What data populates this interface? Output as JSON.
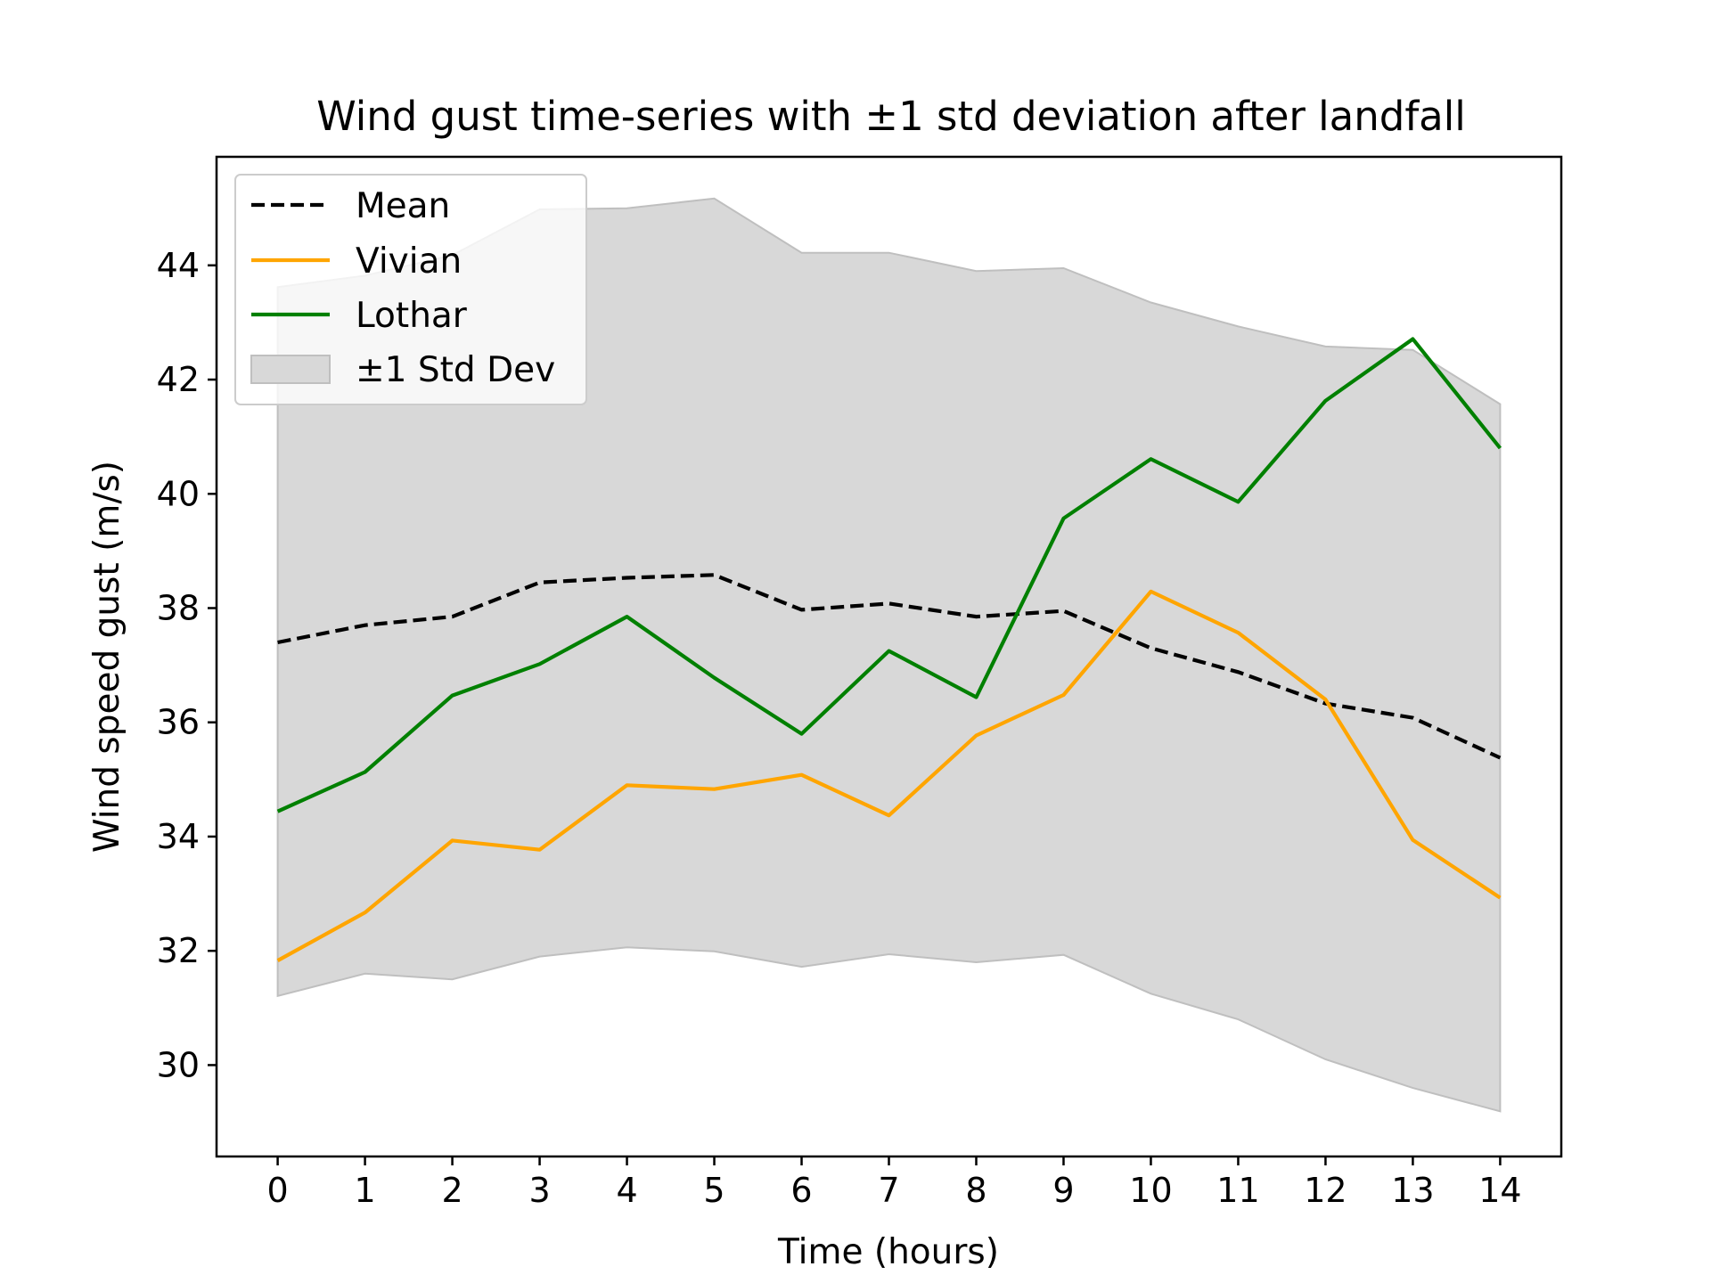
{
  "chart_data": {
    "type": "line",
    "title": "Wind gust time-series with ±1 std deviation after landfall",
    "xlabel": "Time (hours)",
    "ylabel": "Wind speed gust (m/s)",
    "x": [
      0,
      1,
      2,
      3,
      4,
      5,
      6,
      7,
      8,
      9,
      10,
      11,
      12,
      13,
      14
    ],
    "xlim": [
      -0.7,
      14.7
    ],
    "ylim": [
      28.4,
      45.9
    ],
    "xticks": [
      "0",
      "1",
      "2",
      "3",
      "4",
      "5",
      "6",
      "7",
      "8",
      "9",
      "10",
      "11",
      "12",
      "13",
      "14"
    ],
    "yticks": [
      "30",
      "32",
      "34",
      "36",
      "38",
      "40",
      "42",
      "44"
    ],
    "grid": false,
    "legend_position": "top-left",
    "series": [
      {
        "name": "Mean",
        "style": "dashed",
        "color": "#000000",
        "values": [
          37.4,
          37.7,
          37.85,
          38.45,
          38.53,
          38.58,
          37.97,
          38.08,
          37.85,
          37.95,
          37.3,
          36.88,
          36.33,
          36.08,
          35.38
        ]
      },
      {
        "name": "Vivian",
        "style": "solid",
        "color": "#ffa500",
        "values": [
          31.83,
          32.67,
          33.93,
          33.77,
          34.9,
          34.83,
          35.08,
          34.37,
          35.77,
          36.48,
          38.29,
          37.57,
          36.4,
          33.94,
          32.93
        ]
      },
      {
        "name": "Lothar",
        "style": "solid",
        "color": "#008000",
        "values": [
          34.44,
          35.13,
          36.47,
          37.02,
          37.85,
          36.78,
          35.8,
          37.25,
          36.44,
          39.57,
          40.61,
          39.86,
          41.63,
          42.71,
          40.8
        ]
      }
    ],
    "band": {
      "name": "±1 Std Dev",
      "color": "#d8d8d8",
      "edge_color": "#bfbfbf",
      "upper": [
        43.62,
        43.82,
        44.18,
        44.98,
        45.0,
        45.17,
        44.22,
        44.22,
        43.9,
        43.95,
        43.35,
        42.93,
        42.58,
        42.52,
        41.57
      ],
      "lower": [
        31.21,
        31.6,
        31.5,
        31.9,
        32.06,
        31.99,
        31.72,
        31.94,
        31.8,
        31.93,
        31.25,
        30.8,
        30.1,
        29.6,
        29.19
      ]
    }
  }
}
